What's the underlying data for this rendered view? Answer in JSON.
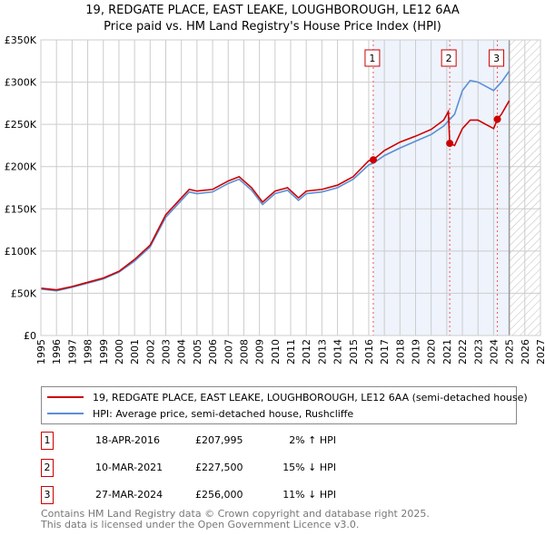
{
  "chart_data": {
    "type": "line",
    "title": "19, REDGATE PLACE, EAST LEAKE, LOUGHBOROUGH, LE12 6AA",
    "subtitle": "Price paid vs. HM Land Registry's House Price Index (HPI)",
    "xlim": [
      1995,
      2027
    ],
    "ylim": [
      0,
      350000
    ],
    "x_ticks": [
      "1995",
      "1996",
      "1997",
      "1998",
      "1999",
      "2000",
      "2001",
      "2002",
      "2003",
      "2004",
      "2005",
      "2006",
      "2007",
      "2008",
      "2009",
      "2010",
      "2011",
      "2012",
      "2013",
      "2014",
      "2015",
      "2016",
      "2017",
      "2018",
      "2019",
      "2020",
      "2021",
      "2022",
      "2023",
      "2024",
      "2025",
      "2026",
      "2027"
    ],
    "y_ticks": [
      {
        "v": 0,
        "label": "£0"
      },
      {
        "v": 50000,
        "label": "£50K"
      },
      {
        "v": 100000,
        "label": "£100K"
      },
      {
        "v": 150000,
        "label": "£150K"
      },
      {
        "v": 200000,
        "label": "£200K"
      },
      {
        "v": 250000,
        "label": "£250K"
      },
      {
        "v": 300000,
        "label": "£300K"
      },
      {
        "v": 350000,
        "label": "£350K"
      }
    ],
    "grid": true,
    "series": [
      {
        "name": "19, REDGATE PLACE, EAST LEAKE, LOUGHBOROUGH, LE12 6AA (semi-detached house)",
        "color": "#cc0000",
        "x": [
          1995,
          1996,
          1997,
          1998,
          1999,
          2000,
          2001,
          2002,
          2003,
          2004,
          2004.5,
          2005,
          2006,
          2007,
          2007.7,
          2008.5,
          2009.2,
          2010,
          2010.8,
          2011.5,
          2012,
          2013,
          2014,
          2015,
          2016,
          2016.29,
          2017,
          2018,
          2019,
          2020,
          2020.8,
          2021.1,
          2021.19,
          2021.5,
          2022,
          2022.5,
          2023,
          2023.5,
          2024,
          2024.24,
          2024.5,
          2025
        ],
        "values": [
          56000,
          54000,
          58000,
          63000,
          68000,
          76000,
          90000,
          107000,
          143000,
          163000,
          173000,
          171000,
          173000,
          183000,
          188000,
          175000,
          158000,
          171000,
          175000,
          163000,
          171000,
          173000,
          178000,
          188000,
          207000,
          207995,
          219000,
          229000,
          236000,
          244000,
          255000,
          265000,
          227500,
          225000,
          245000,
          255000,
          255000,
          250000,
          245000,
          256000,
          262000,
          278000
        ]
      },
      {
        "name": "HPI: Average price, semi-detached house, Rushcliffe",
        "color": "#5b8fd6",
        "x": [
          1995,
          1996,
          1997,
          1998,
          1999,
          2000,
          2001,
          2002,
          2003,
          2004,
          2004.5,
          2005,
          2006,
          2007,
          2007.7,
          2008.5,
          2009.2,
          2010,
          2010.8,
          2011.5,
          2012,
          2013,
          2014,
          2015,
          2016,
          2016.29,
          2017,
          2018,
          2019,
          2020,
          2020.8,
          2021.1,
          2021.5,
          2022,
          2022.5,
          2023,
          2023.5,
          2024,
          2024.5,
          2025
        ],
        "values": [
          55000,
          53000,
          57000,
          62000,
          67000,
          75000,
          88000,
          105000,
          140000,
          160000,
          170000,
          168000,
          170000,
          180000,
          185000,
          172000,
          155000,
          168000,
          172000,
          160000,
          168000,
          170000,
          175000,
          185000,
          202000,
          204000,
          213000,
          222000,
          230000,
          238000,
          248000,
          254000,
          262000,
          290000,
          302000,
          300000,
          295000,
          290000,
          300000,
          313000
        ]
      }
    ],
    "sales": [
      {
        "label": "1",
        "x": 2016.29,
        "value": 207995,
        "date": "18-APR-2016",
        "price": "£207,995",
        "hpi": "2% ↑ HPI"
      },
      {
        "label": "2",
        "x": 2021.19,
        "value": 227500,
        "date": "10-MAR-2021",
        "price": "£227,500",
        "hpi": "15% ↓ HPI"
      },
      {
        "label": "3",
        "x": 2024.24,
        "value": 256000,
        "date": "27-MAR-2024",
        "price": "£256,000",
        "hpi": "11% ↓ HPI"
      }
    ],
    "shaded_from": 2016.29,
    "shaded_to": 2025.0,
    "forecast_from": 2025.0
  },
  "footer": {
    "line1": "Contains HM Land Registry data © Crown copyright and database right 2025.",
    "line2": "This data is licensed under the Open Government Licence v3.0."
  }
}
